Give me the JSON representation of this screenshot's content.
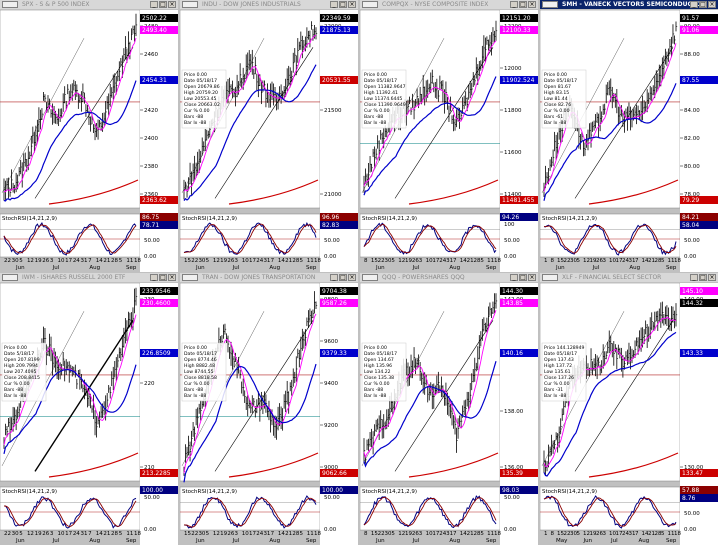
{
  "panels": [
    {
      "title": "SPX - S & P 500 INDEX",
      "active": false,
      "price_labels": [
        {
          "text": "2502.22",
          "bg": "#000000",
          "fg": "#ffffff"
        },
        {
          "text": "2493.40",
          "bg": "#ff00ff",
          "fg": "#ffffff"
        },
        {
          "text": "2454.31",
          "bg": "#0000cc",
          "fg": "#ffffff"
        },
        {
          "text": "2363.62",
          "bg": "#cc0000",
          "fg": "#ffffff"
        }
      ],
      "y_ticks": [
        "2480",
        "2460",
        "2440",
        "2420",
        "2400",
        "2380",
        "2360"
      ],
      "info_box": [],
      "stoch_label": "StochRSI(14,21,2,9)",
      "stoch_values": [
        {
          "text": "86.75",
          "bg": "#8b0000",
          "fg": "#ffffff"
        },
        {
          "text": "78.71",
          "bg": "#000080",
          "fg": "#ffffff"
        }
      ],
      "stoch_ticks": [
        "100",
        "50.00",
        "0.00"
      ],
      "x_days": [
        "22",
        "30",
        "5",
        "12",
        "19",
        "26",
        "3",
        "10",
        "17",
        "24",
        "31",
        "7",
        "14",
        "21",
        "28",
        "5",
        "11",
        "18"
      ],
      "x_months": [
        "Jun",
        "Jul",
        "Aug",
        "Sep"
      ]
    },
    {
      "title": "INDU - DOW JONES INDUSTRIALS",
      "active": false,
      "price_labels": [
        {
          "text": "22349.59",
          "bg": "#000000",
          "fg": "#ffffff"
        },
        {
          "text": "21875.13",
          "bg": "#0000cc",
          "fg": "#ffffff"
        },
        {
          "text": "20531.55",
          "bg": "#cc0000",
          "fg": "#ffffff"
        }
      ],
      "y_ticks": [
        "22000",
        "21500",
        "21000"
      ],
      "info_box": [
        "Price  0.00",
        "Date  05/18/17",
        "Open  20679.86",
        "High  20759.20",
        "Low  20553.45",
        "Close  20663.02",
        "Cur %  0.00",
        "Bars  -88",
        "Bar Ix  -88"
      ],
      "stoch_label": "StochRSI(14,21,2,9)",
      "stoch_values": [
        {
          "text": "96.96",
          "bg": "#8b0000",
          "fg": "#ffffff"
        },
        {
          "text": "82.83",
          "bg": "#000080",
          "fg": "#ffffff"
        }
      ],
      "stoch_ticks": [
        "100",
        "50.00",
        "0.00"
      ],
      "x_days": [
        "15",
        "22",
        "30",
        "5",
        "12",
        "19",
        "26",
        "3",
        "10",
        "17",
        "24",
        "31",
        "7",
        "14",
        "21",
        "28",
        "5",
        "11",
        "18"
      ],
      "x_months": [
        "Jun",
        "Jul",
        "Aug",
        "Sep"
      ]
    },
    {
      "title": "COMPQX - NYSE COMPOSITE INDEX",
      "active": false,
      "price_labels": [
        {
          "text": "12151.20",
          "bg": "#000000",
          "fg": "#ffffff"
        },
        {
          "text": "12100.33",
          "bg": "#ff00ff",
          "fg": "#ffffff"
        },
        {
          "text": "11902.524",
          "bg": "#0000cc",
          "fg": "#ffffff"
        },
        {
          "text": "11481.455",
          "bg": "#cc0000",
          "fg": "#ffffff"
        }
      ],
      "y_ticks": [
        "12200",
        "12000",
        "11800",
        "11600",
        "11400"
      ],
      "info_box": [
        "Price  0.00",
        "Date  05/18/17",
        "Open  11382.9647",
        "High  11392.41",
        "Low  11374.6445",
        "Close  11390.9649",
        "Cur %  0.00",
        "Bars  -88",
        "Bar Ix  -88"
      ],
      "stoch_label": "StochRSI(14,21,2,9)",
      "stoch_values": [
        {
          "text": "94.26",
          "bg": "#000080",
          "fg": "#ffffff"
        }
      ],
      "stoch_ticks": [
        "100",
        "50.00",
        "0.00"
      ],
      "x_days": [
        "8",
        "15",
        "22",
        "30",
        "5",
        "12",
        "19",
        "26",
        "3",
        "10",
        "17",
        "24",
        "31",
        "7",
        "14",
        "21",
        "28",
        "5",
        "11",
        "18"
      ],
      "x_months": [
        "Jun",
        "Jul",
        "Aug",
        "Sep"
      ]
    },
    {
      "title": "SMH - VANECK VECTORS SEMICONDUCTOR",
      "active": true,
      "price_labels": [
        {
          "text": "91.57",
          "bg": "#000000",
          "fg": "#ffffff"
        },
        {
          "text": "91.06",
          "bg": "#ff00ff",
          "fg": "#ffffff"
        },
        {
          "text": "87.55",
          "bg": "#0000cc",
          "fg": "#ffffff"
        },
        {
          "text": "79.29",
          "bg": "#cc0000",
          "fg": "#ffffff"
        }
      ],
      "y_ticks": [
        "90.00",
        "88.00",
        "86.00",
        "84.00",
        "82.00",
        "80.00",
        "78.00"
      ],
      "info_box": [
        "Price  0.00",
        "Date  05/18/17",
        "Open  81.67",
        "High  83.15",
        "Low  81.44",
        "Close  82.76",
        "Cur %  0.00",
        "Bars  -61",
        "Bar Ix  -88"
      ],
      "stoch_label": "StochRSI(14,21,2,9)",
      "stoch_values": [
        {
          "text": "84.21",
          "bg": "#8b0000",
          "fg": "#ffffff"
        },
        {
          "text": "58.04",
          "bg": "#000080",
          "fg": "#ffffff"
        }
      ],
      "stoch_ticks": [
        "100",
        "50.00",
        "0.00"
      ],
      "x_days": [
        "1",
        "8",
        "15",
        "22",
        "30",
        "5",
        "12",
        "19",
        "26",
        "3",
        "10",
        "17",
        "24",
        "31",
        "7",
        "14",
        "21",
        "28",
        "5",
        "11",
        "18"
      ],
      "x_months": [
        "Jun",
        "Jul",
        "Aug",
        "Sep"
      ]
    },
    {
      "title": "IWM - ISHARES RUSSELL 2000 ETF",
      "active": false,
      "price_labels": [
        {
          "text": "233.9546",
          "bg": "#000000",
          "fg": "#ffffff"
        },
        {
          "text": "230.4600",
          "bg": "#ff00ff",
          "fg": "#ffffff"
        },
        {
          "text": "226.8509",
          "bg": "#0000cc",
          "fg": "#ffffff"
        },
        {
          "text": "213.2285",
          "bg": "#cc0000",
          "fg": "#ffffff"
        }
      ],
      "y_ticks": [
        "230",
        "220",
        "210"
      ],
      "info_box": [
        "Price  0.00",
        "Date  5/18/17",
        "Open  207.8199",
        "High  209.7994",
        "Low  207.4095",
        "Close  208.8415",
        "Cur %  0.00",
        "Bars  -88",
        "Bar Ix  -88"
      ],
      "stoch_label": "StochRSI(14,21,2,9)",
      "stoch_values": [
        {
          "text": "100.00",
          "bg": "#000080",
          "fg": "#ffffff"
        }
      ],
      "stoch_ticks": [
        "50.00",
        "0.00"
      ],
      "x_days": [
        "22",
        "30",
        "5",
        "12",
        "19",
        "26",
        "3",
        "10",
        "17",
        "24",
        "31",
        "7",
        "14",
        "21",
        "28",
        "5",
        "11",
        "18"
      ],
      "x_months": [
        "Jun",
        "Jul",
        "Aug",
        "Sep"
      ]
    },
    {
      "title": "TRAN - DOW JONES TRANSPORTATION",
      "active": false,
      "price_labels": [
        {
          "text": "9704.38",
          "bg": "#000000",
          "fg": "#ffffff"
        },
        {
          "text": "9587.26",
          "bg": "#ff00ff",
          "fg": "#ffffff"
        },
        {
          "text": "9379.33",
          "bg": "#0000cc",
          "fg": "#ffffff"
        },
        {
          "text": "9062.66",
          "bg": "#cc0000",
          "fg": "#ffffff"
        }
      ],
      "y_ticks": [
        "9800",
        "9600",
        "9400",
        "9200",
        "9000"
      ],
      "info_box": [
        "Price  0.00",
        "Date  05/18/17",
        "Open  8774.46",
        "High  8882.48",
        "Low  8744.55",
        "Close  8818.58",
        "Cur %  0.00",
        "Bars  -88",
        "Bar Ix  -88"
      ],
      "stoch_label": "StochRSI(14,21,2,9)",
      "stoch_values": [
        {
          "text": "100.00",
          "bg": "#000080",
          "fg": "#ffffff"
        }
      ],
      "stoch_ticks": [
        "50.00",
        "0.00"
      ],
      "x_days": [
        "15",
        "22",
        "30",
        "5",
        "12",
        "19",
        "26",
        "3",
        "10",
        "17",
        "24",
        "31",
        "7",
        "14",
        "21",
        "28",
        "5",
        "11",
        "18"
      ],
      "x_months": [
        "Jun",
        "Jul",
        "Aug",
        "Sep"
      ]
    },
    {
      "title": "QQQ - POWERSHARES QQQ",
      "active": false,
      "price_labels": [
        {
          "text": "144.30",
          "bg": "#000000",
          "fg": "#ffffff"
        },
        {
          "text": "143.85",
          "bg": "#ff00ff",
          "fg": "#ffffff"
        },
        {
          "text": "140.16",
          "bg": "#0000cc",
          "fg": "#ffffff"
        },
        {
          "text": "135.39",
          "bg": "#cc0000",
          "fg": "#ffffff"
        }
      ],
      "y_ticks": [
        "142.00",
        "140.00",
        "138.00",
        "136.00"
      ],
      "info_box": [
        "Price  0.00",
        "Date  05/18/17",
        "Open  134.67",
        "High  135.96",
        "Low  134.22",
        "Close  135.38",
        "Cur %  0.00",
        "Bars  -88",
        "Bar Ix  -88"
      ],
      "stoch_label": "StochRSI(14,21,2,9)",
      "stoch_values": [
        {
          "text": "98.03",
          "bg": "#000080",
          "fg": "#ffffff"
        }
      ],
      "stoch_ticks": [
        "50.00",
        "0.00"
      ],
      "x_days": [
        "8",
        "15",
        "22",
        "30",
        "5",
        "12",
        "19",
        "26",
        "3",
        "10",
        "17",
        "24",
        "31",
        "7",
        "14",
        "21",
        "28",
        "5",
        "11",
        "18"
      ],
      "x_months": [
        "Jun",
        "Jul",
        "Aug",
        "Sep"
      ]
    },
    {
      "title": "XLF - FINANCIAL SELECT SECTOR",
      "active": false,
      "price_labels": [
        {
          "text": "145.10",
          "bg": "#ff00ff",
          "fg": "#ffffff"
        },
        {
          "text": "144.32",
          "bg": "#000000",
          "fg": "#ffffff"
        },
        {
          "text": "143.33",
          "bg": "#0000cc",
          "fg": "#ffffff"
        },
        {
          "text": "133.47",
          "bg": "#cc0000",
          "fg": "#ffffff"
        }
      ],
      "y_ticks": [
        "140.00",
        "130.00"
      ],
      "info_box": [
        "Price  144.128949",
        "Date  05/18/17",
        "Open  137.43",
        "High  137.72",
        "Low  135.61",
        "Close  137.26",
        "Cur %  0.00",
        "Bars  -31",
        "Bar Ix  -88"
      ],
      "stoch_label": "StochRSI(14,21,2,9)",
      "stoch_values": [
        {
          "text": "57.88",
          "bg": "#8b0000",
          "fg": "#ffffff"
        },
        {
          "text": "8.76",
          "bg": "#000080",
          "fg": "#ffffff"
        }
      ],
      "stoch_ticks": [
        "100",
        "50.00",
        "0.00"
      ],
      "x_days": [
        "1",
        "8",
        "15",
        "22",
        "30",
        "5",
        "12",
        "19",
        "26",
        "3",
        "10",
        "17",
        "24",
        "31",
        "7",
        "14",
        "21",
        "28",
        "5",
        "11",
        "18"
      ],
      "x_months": [
        "May",
        "Jun",
        "Jul",
        "Aug",
        "Sep"
      ]
    }
  ],
  "window_buttons": {
    "minimize": "_",
    "maximize": "□",
    "close": "×"
  },
  "colors": {
    "price_bars": "#000000",
    "ma_short": "#ff00ff",
    "ma_mid": "#0000cc",
    "ma_long": "#cc0000",
    "trendline": "#000000",
    "stoch_k": "#000080",
    "stoch_d": "#8b0000",
    "reference_line": "#b22222",
    "support_line": "#008080"
  }
}
